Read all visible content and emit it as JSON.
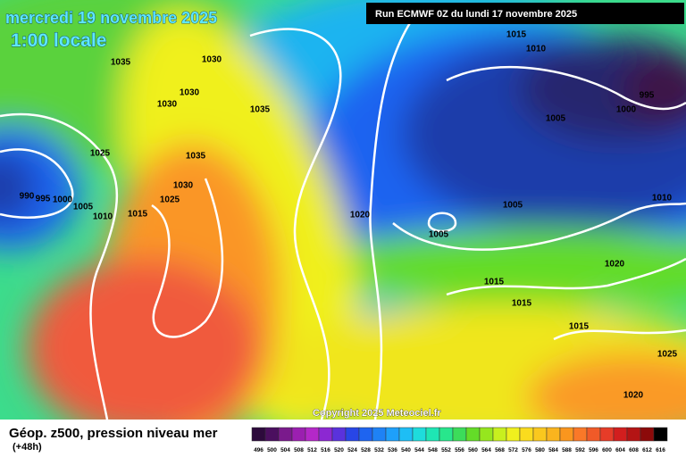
{
  "header": {
    "date": "mercredi 19 novembre 2025",
    "time": "1:00 locale",
    "run": "Run ECMWF 0Z du lundi 17 novembre 2025",
    "copyright": "Copyright 2025 Meteociel.fr"
  },
  "footer": {
    "title": "Géop. z500, pression niveau mer",
    "lead": "(+48h)"
  },
  "isobar_labels": [
    "1015",
    "1010",
    "1035",
    "1030",
    "1030",
    "1030",
    "1035",
    "995",
    "1000",
    "1005",
    "1025",
    "1035",
    "1030",
    "1025",
    "990",
    "995",
    "1000",
    "1005",
    "1010",
    "1015",
    "1020",
    "1005",
    "1010",
    "1005",
    "1020",
    "1015",
    "1015",
    "1015",
    "1025",
    "1020"
  ],
  "colorbar": [
    {
      "value": 496,
      "color": "#2d0a3c"
    },
    {
      "value": 500,
      "color": "#4b0f5f"
    },
    {
      "value": 504,
      "color": "#7a1a8c"
    },
    {
      "value": 508,
      "color": "#9b1fb0"
    },
    {
      "value": 512,
      "color": "#b428c8"
    },
    {
      "value": 516,
      "color": "#8c28d2"
    },
    {
      "value": 520,
      "color": "#5a32dc"
    },
    {
      "value": 524,
      "color": "#2846e6"
    },
    {
      "value": 528,
      "color": "#1e64f0"
    },
    {
      "value": 532,
      "color": "#1e82f5"
    },
    {
      "value": 536,
      "color": "#1ea0fa"
    },
    {
      "value": 540,
      "color": "#1ebef5"
    },
    {
      "value": 544,
      "color": "#1edcdc"
    },
    {
      "value": 548,
      "color": "#1ee6b4"
    },
    {
      "value": 552,
      "color": "#28e68c"
    },
    {
      "value": 556,
      "color": "#3cdc5a"
    },
    {
      "value": 560,
      "color": "#64dc28"
    },
    {
      "value": 564,
      "color": "#96e61e"
    },
    {
      "value": 568,
      "color": "#c8f01e"
    },
    {
      "value": 572,
      "color": "#f0f01e"
    },
    {
      "value": 576,
      "color": "#fadc1e"
    },
    {
      "value": 580,
      "color": "#fac81e"
    },
    {
      "value": 584,
      "color": "#fab41e"
    },
    {
      "value": 588,
      "color": "#fa961e"
    },
    {
      "value": 592,
      "color": "#fa7828"
    },
    {
      "value": 596,
      "color": "#f05a28"
    },
    {
      "value": 600,
      "color": "#e63c28"
    },
    {
      "value": 604,
      "color": "#d21e1e"
    },
    {
      "value": 608,
      "color": "#b41414"
    },
    {
      "value": 612,
      "color": "#8c0a0a"
    },
    {
      "value": 616,
      "color": "#000000"
    }
  ]
}
